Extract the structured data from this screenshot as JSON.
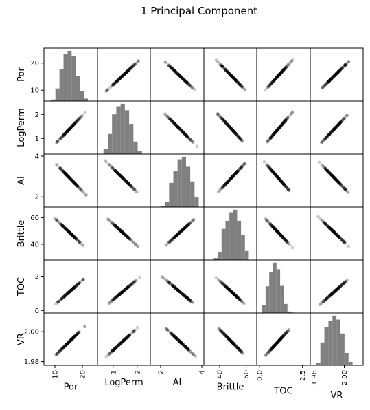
{
  "chart_data": {
    "type": "scatter",
    "title": "1 Principal Component",
    "variables": [
      "Por",
      "LogPerm",
      "AI",
      "Brittle",
      "TOC",
      "VR"
    ],
    "ranges": {
      "Por": [
        6.0,
        25.5
      ],
      "LogPerm": [
        0.35,
        2.55
      ],
      "AI": [
        1.5,
        4.1
      ],
      "Brittle": [
        28,
        68
      ],
      "TOC": [
        -0.15,
        2.95
      ],
      "VR": [
        1.9775,
        2.0125
      ]
    },
    "ticks": {
      "Por": [
        10,
        20
      ],
      "LogPerm": [
        1,
        2
      ],
      "AI": [
        2,
        4
      ],
      "Brittle": [
        40,
        60
      ],
      "TOC": [
        0.0,
        2.5
      ],
      "VR": [
        1.98,
        2.0
      ]
    },
    "row_tick_labels": {
      "Por": [
        "10",
        "20"
      ],
      "LogPerm": [
        "1",
        "2"
      ],
      "AI": [
        "2",
        "4"
      ],
      "Brittle": [
        "40",
        "60"
      ],
      "TOC": [
        "0",
        "2"
      ],
      "VR": [
        "1.98",
        "2.00"
      ]
    },
    "row_tick_values": {
      "Por": [
        10,
        20
      ],
      "LogPerm": [
        1,
        2
      ],
      "AI": [
        2,
        4
      ],
      "Brittle": [
        40,
        60
      ],
      "TOC": [
        0,
        2
      ],
      "VR": [
        1.98,
        2.0
      ]
    },
    "col_tick_labels": {
      "Por": [
        "10",
        "20"
      ],
      "LogPerm": [
        "1",
        "2"
      ],
      "AI": [
        "2",
        "4"
      ],
      "Brittle": [
        "40",
        "60"
      ],
      "TOC": [
        "0.0",
        "2.5"
      ],
      "VR": [
        "1.98",
        "2.00"
      ]
    },
    "data_extent": {
      "Por": [
        8.7,
        22.0
      ],
      "LogPerm": [
        0.6,
        2.2
      ],
      "AI": [
        2.0,
        3.85
      ],
      "Brittle": [
        35.5,
        62.0
      ],
      "TOC": [
        0.15,
        2.05
      ],
      "VR": [
        1.9815,
        2.0055
      ]
    },
    "correlation_sign": {
      "Por": 1,
      "LogPerm": 1,
      "AI": -1,
      "Brittle": -1,
      "TOC": 1,
      "VR": 1
    },
    "histograms": {
      "Por": [
        0.03,
        0.25,
        0.63,
        0.94,
        1.0,
        0.89,
        0.5,
        0.2,
        0.05
      ],
      "LogPerm": [
        0.1,
        0.4,
        0.79,
        0.95,
        1.0,
        0.87,
        0.6,
        0.25,
        0.06
      ],
      "AI": [
        0.02,
        0.1,
        0.48,
        0.72,
        0.95,
        1.0,
        0.8,
        0.51,
        0.19
      ],
      "Brittle": [
        0.04,
        0.15,
        0.62,
        0.78,
        0.95,
        1.0,
        0.78,
        0.5,
        0.18
      ],
      "TOC": [
        0.15,
        0.53,
        0.81,
        1.0,
        0.87,
        0.54,
        0.18,
        0.03,
        0.01
      ],
      "VR": [
        0.05,
        0.46,
        0.77,
        0.89,
        1.0,
        0.92,
        0.64,
        0.25,
        0.07
      ]
    },
    "colors": {
      "points": "#000000",
      "hist": "#808080"
    },
    "grid": false,
    "legend": "none"
  }
}
